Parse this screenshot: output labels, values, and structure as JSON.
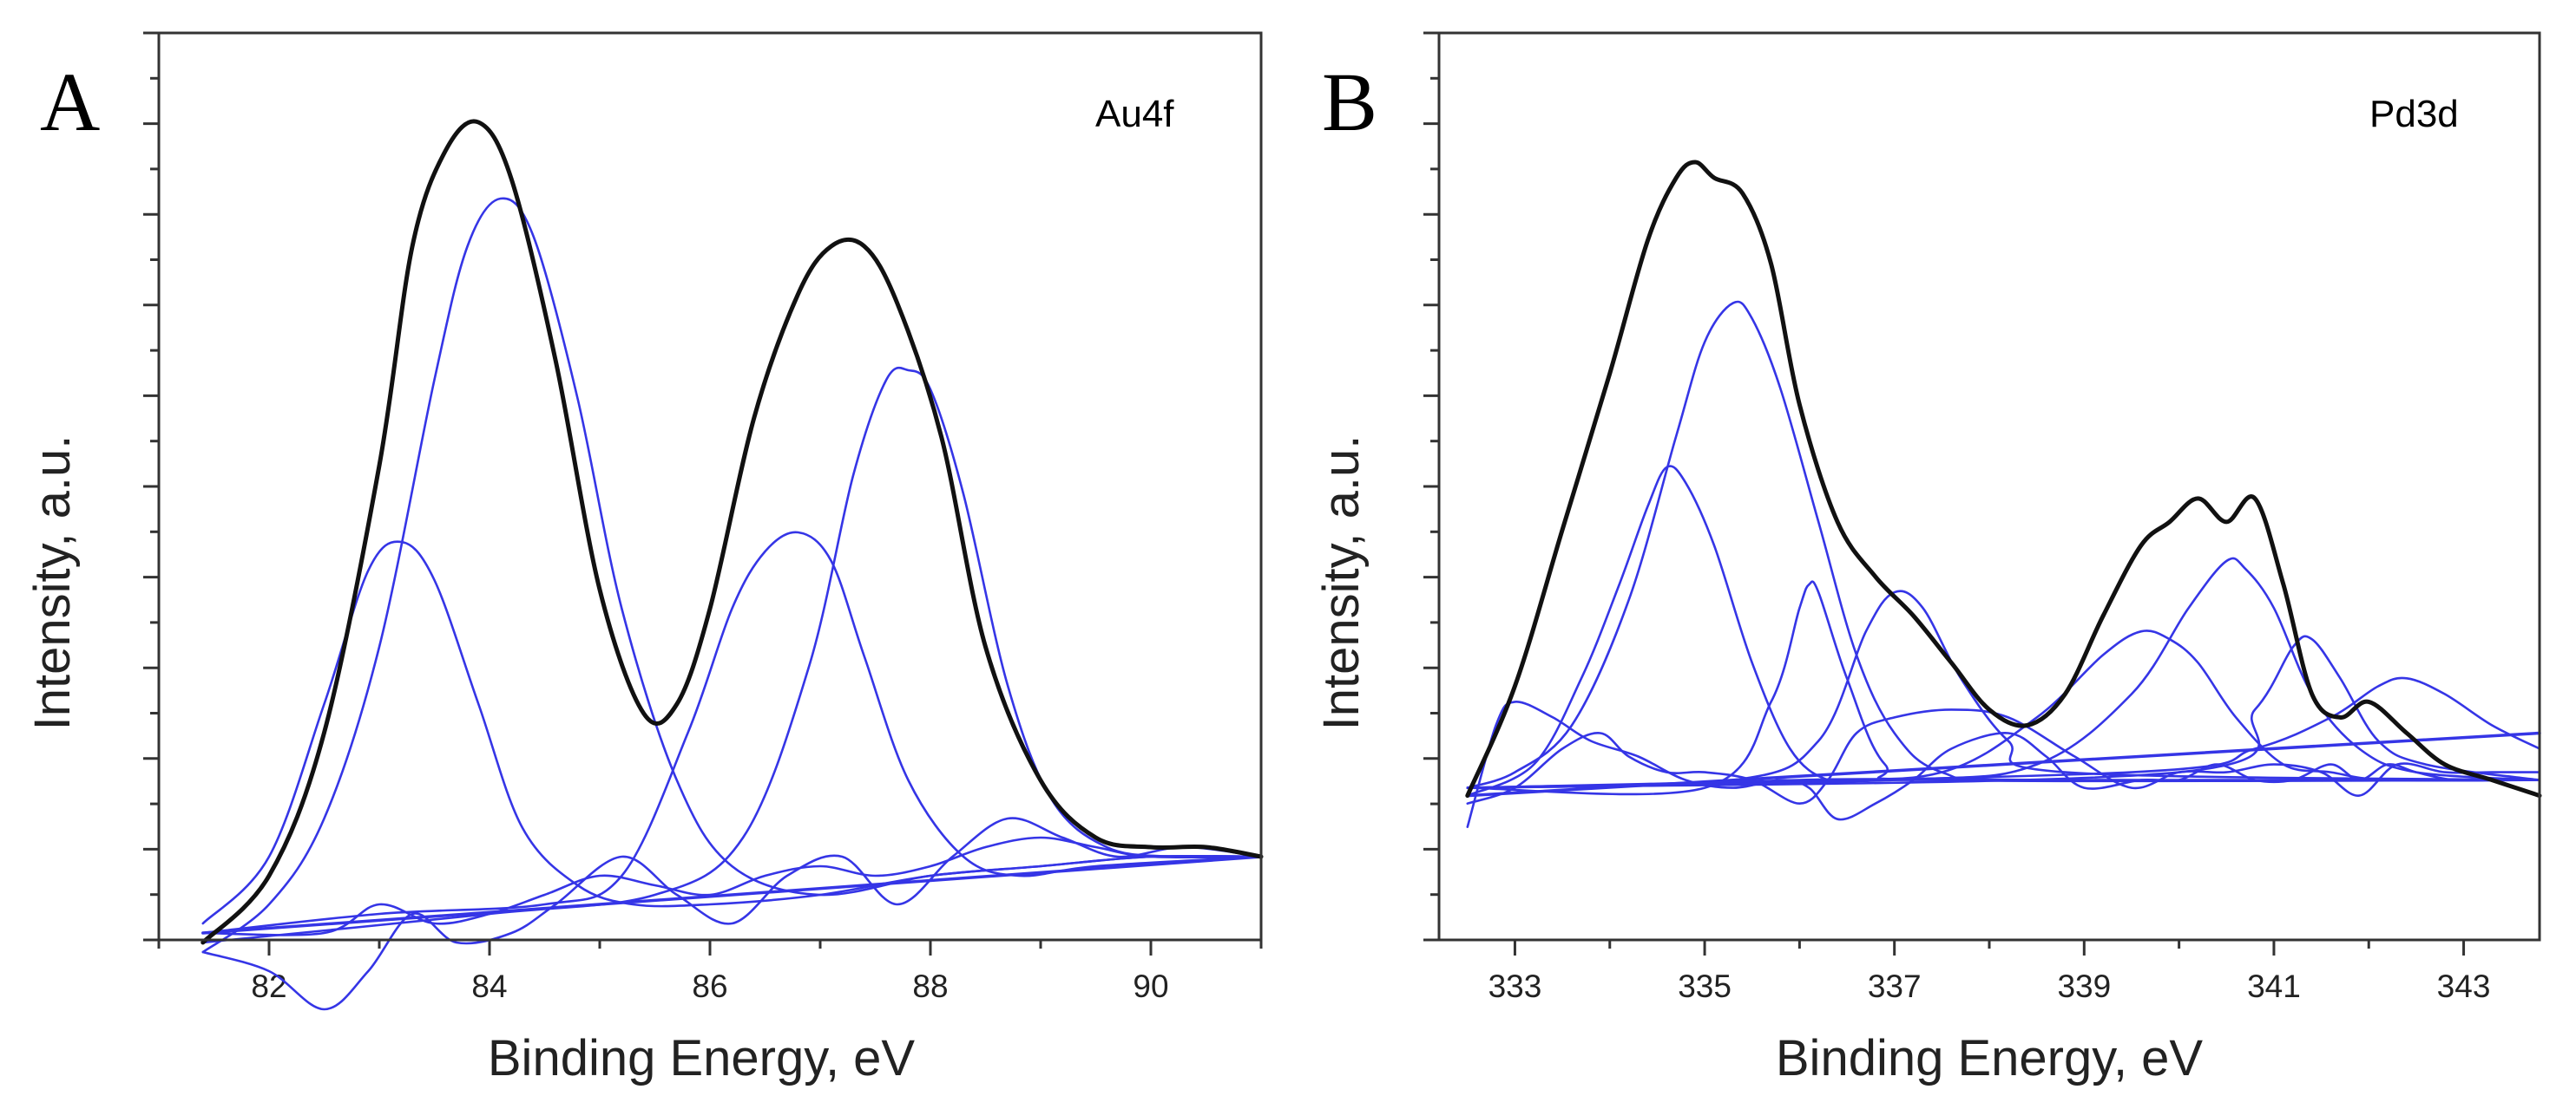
{
  "chart_data": [
    {
      "type": "line",
      "panel_letter": "A",
      "label": "Au4f",
      "xlabel": "Binding Energy, eV",
      "ylabel": "Intensity, a.u.",
      "xlim": [
        81,
        91
      ],
      "ylim": [
        0,
        1
      ],
      "x_ticks": [
        82,
        84,
        86,
        88,
        90
      ],
      "y_tick_labels": false,
      "grid": false,
      "legend": "none",
      "colors": {
        "envelope": "#111111",
        "components": "#3535e6"
      },
      "series": [
        {
          "role": "envelope",
          "x": [
            81.4,
            82,
            82.5,
            83,
            83.3,
            83.6,
            83.9,
            84.2,
            84.6,
            85,
            85.4,
            85.7,
            86,
            86.4,
            86.8,
            87.1,
            87.4,
            87.7,
            88.1,
            88.5,
            89,
            89.5,
            90,
            90.5,
            91
          ],
          "values": [
            0.13,
            0.2,
            0.35,
            0.63,
            0.86,
            0.96,
            0.99,
            0.93,
            0.74,
            0.5,
            0.37,
            0.38,
            0.48,
            0.68,
            0.81,
            0.86,
            0.86,
            0.8,
            0.66,
            0.44,
            0.3,
            0.24,
            0.23,
            0.23,
            0.22
          ]
        },
        {
          "role": "component",
          "x": [
            81.4,
            82,
            82.5,
            82.9,
            83.2,
            83.5,
            83.9,
            84.3,
            84.8,
            85.3,
            86,
            87,
            88,
            89,
            90,
            91
          ],
          "values": [
            0.15,
            0.22,
            0.38,
            0.52,
            0.55,
            0.51,
            0.38,
            0.25,
            0.19,
            0.17,
            0.17,
            0.18,
            0.2,
            0.21,
            0.22,
            0.22
          ]
        },
        {
          "role": "component",
          "x": [
            81.4,
            82,
            82.5,
            83,
            83.5,
            83.8,
            84.1,
            84.4,
            84.8,
            85.2,
            85.7,
            86.2,
            87,
            88,
            89,
            90,
            91
          ],
          "values": [
            0.12,
            0.17,
            0.26,
            0.44,
            0.72,
            0.86,
            0.91,
            0.87,
            0.7,
            0.48,
            0.3,
            0.21,
            0.18,
            0.2,
            0.21,
            0.22,
            0.22
          ]
        },
        {
          "role": "component",
          "x": [
            81.4,
            83,
            84.5,
            85.2,
            85.8,
            86.2,
            86.5,
            86.8,
            87.1,
            87.4,
            87.8,
            88.3,
            88.8,
            89.5,
            91
          ],
          "values": [
            0.14,
            0.16,
            0.17,
            0.2,
            0.35,
            0.48,
            0.54,
            0.56,
            0.53,
            0.43,
            0.3,
            0.22,
            0.2,
            0.21,
            0.22
          ]
        },
        {
          "role": "component",
          "x": [
            81.4,
            84,
            85.5,
            86.3,
            86.9,
            87.3,
            87.6,
            87.8,
            88,
            88.3,
            88.7,
            89.1,
            89.6,
            90.2,
            91
          ],
          "values": [
            0.13,
            0.16,
            0.18,
            0.24,
            0.42,
            0.62,
            0.72,
            0.73,
            0.71,
            0.6,
            0.4,
            0.28,
            0.23,
            0.22,
            0.22
          ]
        },
        {
          "role": "component",
          "x": [
            81.4,
            82,
            82.5,
            82.9,
            83.3,
            83.7,
            84.2,
            84.6,
            85.2,
            85.7,
            86.2,
            86.7,
            87.2,
            87.7,
            88.2,
            88.7,
            89.2,
            89.7,
            90.3,
            91
          ],
          "values": [
            0.12,
            0.1,
            0.06,
            0.1,
            0.16,
            0.13,
            0.14,
            0.17,
            0.22,
            0.18,
            0.15,
            0.2,
            0.22,
            0.17,
            0.22,
            0.26,
            0.24,
            0.22,
            0.23,
            0.22
          ]
        },
        {
          "role": "component",
          "x": [
            81.4,
            82.5,
            83,
            83.5,
            84,
            84.5,
            85,
            85.5,
            86,
            86.5,
            87,
            87.5,
            88,
            88.5,
            89,
            89.5,
            90,
            91
          ],
          "values": [
            0.14,
            0.14,
            0.17,
            0.15,
            0.16,
            0.18,
            0.2,
            0.19,
            0.18,
            0.2,
            0.21,
            0.2,
            0.21,
            0.23,
            0.24,
            0.23,
            0.22,
            0.22
          ]
        },
        {
          "role": "baseline",
          "x": [
            81.4,
            91
          ],
          "values": [
            0.14,
            0.22
          ]
        }
      ]
    },
    {
      "type": "line",
      "panel_letter": "B",
      "label": "Pd3d",
      "xlabel": "Binding Energy, eV",
      "ylabel": "Intensity, a.u.",
      "xlim": [
        332.2,
        343.8
      ],
      "ylim": [
        0,
        1
      ],
      "x_ticks": [
        333,
        335,
        337,
        339,
        341,
        343
      ],
      "y_tick_labels": false,
      "grid": false,
      "legend": "none",
      "colors": {
        "envelope": "#111111",
        "components": "#3535e6"
      },
      "series": [
        {
          "role": "envelope",
          "x": [
            332.5,
            333,
            333.5,
            334,
            334.4,
            334.7,
            334.9,
            335.1,
            335.4,
            335.7,
            336,
            336.4,
            336.8,
            337.2,
            337.6,
            338,
            338.4,
            338.8,
            339.2,
            339.6,
            339.9,
            340.2,
            340.5,
            340.8,
            341.1,
            341.4,
            341.7,
            342,
            342.4,
            342.8,
            343.3,
            343.8
          ],
          "values": [
            0.18,
            0.32,
            0.52,
            0.72,
            0.89,
            0.97,
            0.99,
            0.97,
            0.95,
            0.86,
            0.68,
            0.53,
            0.46,
            0.41,
            0.35,
            0.29,
            0.27,
            0.31,
            0.41,
            0.5,
            0.53,
            0.56,
            0.53,
            0.56,
            0.45,
            0.31,
            0.28,
            0.3,
            0.26,
            0.22,
            0.2,
            0.18
          ]
        },
        {
          "role": "component",
          "x": [
            332.5,
            333.2,
            333.7,
            334.1,
            334.4,
            334.6,
            334.8,
            335.1,
            335.5,
            335.9,
            336.3,
            336.8,
            338,
            340,
            343.8
          ],
          "values": [
            0.18,
            0.22,
            0.33,
            0.45,
            0.55,
            0.6,
            0.58,
            0.5,
            0.35,
            0.24,
            0.2,
            0.2,
            0.2,
            0.2,
            0.2
          ]
        },
        {
          "role": "component",
          "x": [
            332.5,
            333,
            333.6,
            334.2,
            334.7,
            335,
            335.3,
            335.5,
            335.8,
            336.2,
            336.6,
            337,
            337.5,
            338.5,
            343.8
          ],
          "values": [
            0.19,
            0.21,
            0.27,
            0.43,
            0.64,
            0.76,
            0.81,
            0.79,
            0.7,
            0.53,
            0.36,
            0.26,
            0.21,
            0.2,
            0.2
          ]
        },
        {
          "role": "component",
          "x": [
            332.5,
            335,
            335.7,
            336,
            336.1,
            336.2,
            336.5,
            336.9,
            337.5,
            343.8
          ],
          "values": [
            0.19,
            0.19,
            0.3,
            0.42,
            0.45,
            0.44,
            0.33,
            0.22,
            0.2,
            0.2
          ]
        },
        {
          "role": "component",
          "x": [
            332.5,
            335.3,
            336.2,
            336.7,
            337,
            337.3,
            337.7,
            338.2,
            338.8,
            343.8
          ],
          "values": [
            0.19,
            0.2,
            0.25,
            0.39,
            0.44,
            0.42,
            0.33,
            0.25,
            0.21,
            0.2
          ]
        },
        {
          "role": "component",
          "x": [
            332.5,
            336,
            337.5,
            338.5,
            339.2,
            339.6,
            339.9,
            340.2,
            340.6,
            341.1,
            341.6,
            342.2,
            343.8
          ],
          "values": [
            0.19,
            0.2,
            0.21,
            0.28,
            0.36,
            0.39,
            0.38,
            0.35,
            0.28,
            0.22,
            0.21,
            0.2,
            0.2
          ]
        },
        {
          "role": "component",
          "x": [
            332.5,
            337,
            338.5,
            339.5,
            340.1,
            340.5,
            340.7,
            341,
            341.4,
            341.9,
            342.5,
            343.8
          ],
          "values": [
            0.19,
            0.2,
            0.22,
            0.31,
            0.42,
            0.48,
            0.47,
            0.42,
            0.31,
            0.24,
            0.21,
            0.2
          ]
        },
        {
          "role": "component",
          "x": [
            332.5,
            340,
            340.8,
            341.2,
            341.4,
            341.7,
            342.1,
            342.6,
            343.8
          ],
          "values": [
            0.19,
            0.21,
            0.29,
            0.37,
            0.38,
            0.33,
            0.25,
            0.22,
            0.2
          ]
        },
        {
          "role": "component",
          "x": [
            332.5,
            339.5,
            340.8,
            341.6,
            342.1,
            342.4,
            342.8,
            343.3,
            343.8
          ],
          "values": [
            0.19,
            0.21,
            0.24,
            0.28,
            0.32,
            0.33,
            0.31,
            0.27,
            0.24
          ]
        },
        {
          "role": "component",
          "x": [
            332.5,
            332.8,
            333,
            333.4,
            333.8,
            334.3,
            334.8,
            335.3,
            335.8,
            336.1,
            336.4,
            336.8,
            337.2,
            337.6,
            338.2,
            338.6,
            339,
            339.6,
            340,
            340.4,
            340.8,
            341.2,
            341.6,
            341.9,
            342.2,
            342.5,
            342.9,
            343.4,
            343.8
          ],
          "values": [
            0.14,
            0.27,
            0.3,
            0.28,
            0.25,
            0.23,
            0.2,
            0.19,
            0.2,
            0.19,
            0.15,
            0.17,
            0.2,
            0.24,
            0.26,
            0.23,
            0.19,
            0.2,
            0.2,
            0.22,
            0.2,
            0.2,
            0.22,
            0.2,
            0.22,
            0.21,
            0.2,
            0.2,
            0.2
          ]
        },
        {
          "role": "component",
          "x": [
            332.5,
            333,
            333.5,
            333.9,
            334.2,
            334.6,
            335,
            335.5,
            336,
            336.3,
            336.6,
            337,
            337.6,
            338.2,
            338.9,
            339.5,
            340,
            340.5,
            341,
            341.5,
            341.9,
            342.3,
            342.8,
            343.3,
            343.8
          ],
          "values": [
            0.17,
            0.19,
            0.24,
            0.26,
            0.23,
            0.21,
            0.21,
            0.2,
            0.17,
            0.2,
            0.26,
            0.28,
            0.29,
            0.28,
            0.23,
            0.19,
            0.21,
            0.21,
            0.22,
            0.21,
            0.18,
            0.22,
            0.21,
            0.21,
            0.21
          ]
        },
        {
          "role": "baseline",
          "x": [
            332.5,
            343.8
          ],
          "values": [
            0.18,
            0.26
          ]
        }
      ]
    }
  ]
}
